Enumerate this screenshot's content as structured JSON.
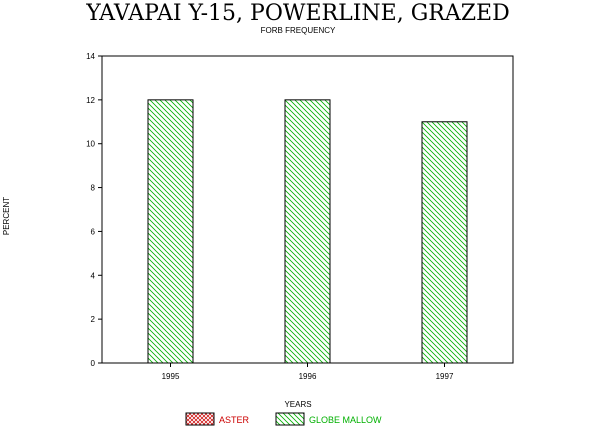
{
  "chart_data": {
    "type": "bar",
    "title": "YAVAPAI Y-15, POWERLINE, GRAZED",
    "subtitle": "FORB FREQUENCY",
    "xlabel": "YEARS",
    "ylabel": "PERCENT",
    "categories": [
      "1995",
      "1996",
      "1997"
    ],
    "ylim": [
      0,
      14
    ],
    "yticks": [
      0,
      2,
      4,
      6,
      8,
      10,
      12,
      14
    ],
    "grid": false,
    "legend_position": "bottom",
    "series": [
      {
        "name": "ASTER",
        "values": [
          0,
          0,
          0
        ],
        "color": "#cc0000",
        "pattern": "crosshatch"
      },
      {
        "name": "GLOBE MALLOW",
        "values": [
          12,
          12,
          11
        ],
        "color": "#00b000",
        "pattern": "diagonal"
      }
    ]
  }
}
